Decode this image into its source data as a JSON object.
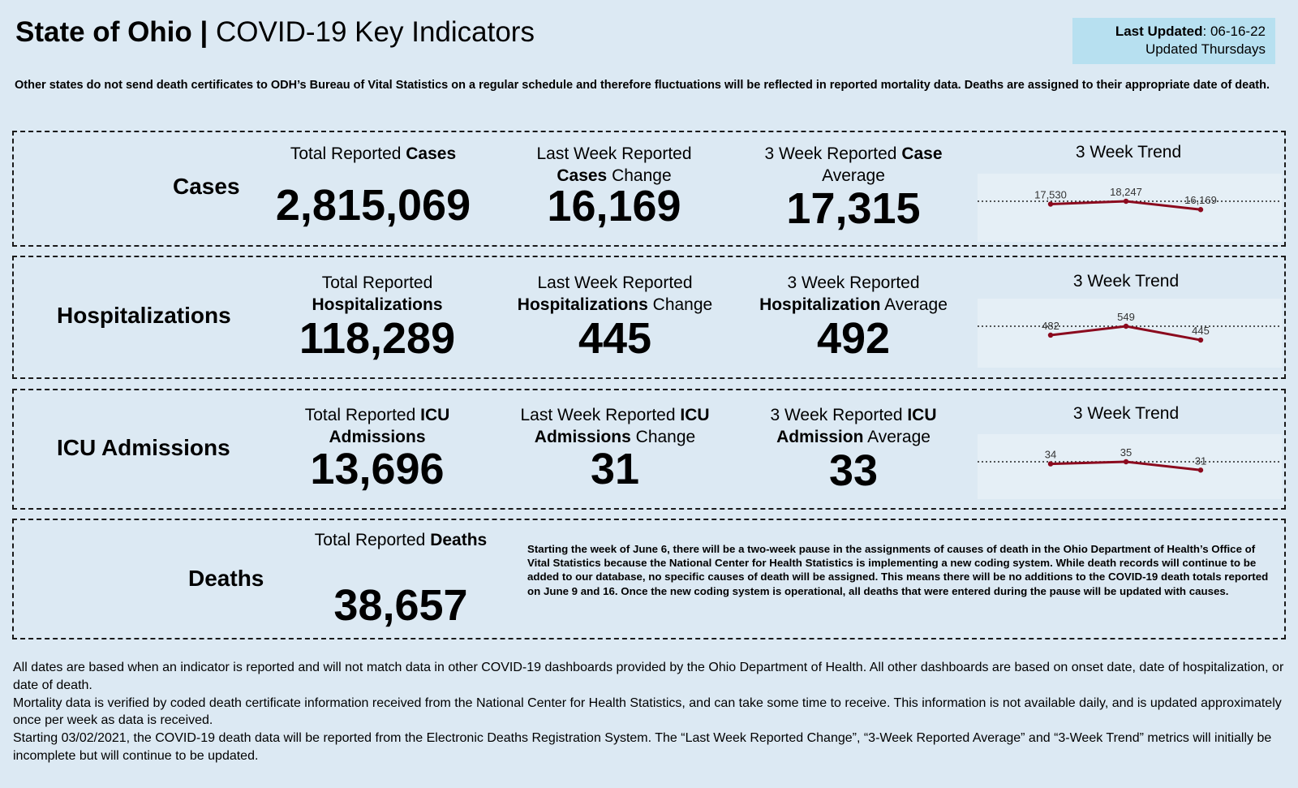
{
  "header": {
    "title_bold": "State of Ohio",
    "title_sep": " | ",
    "title_rest": "COVID-19 Key Indicators",
    "last_updated_label": "Last Updated",
    "last_updated_value": ": 06-16-22",
    "update_schedule": "Updated Thursdays"
  },
  "notice": "Other states do not send death certificates to ODH’s Bureau of Vital Statistics on a regular schedule and therefore fluctuations will be reflected in reported mortality data. Deaths are assigned to their appropriate date of death.",
  "trend_title": "3 Week Trend",
  "cases": {
    "label": "Cases",
    "total_pre": "Total Reported ",
    "total_bold": "Cases",
    "total_value": "2,815,069",
    "change_pre": "Last Week Reported",
    "change_bold": "Cases",
    "change_post": " Change",
    "change_value": "16,169",
    "avg_pre": "3 Week Reported ",
    "avg_bold": "Case",
    "avg_post": "Average",
    "avg_value": "17,315",
    "trend": {
      "values": [
        17530,
        18247,
        16169
      ],
      "labels": [
        "17,530",
        "18,247",
        "16,169"
      ]
    }
  },
  "hospitalizations": {
    "label": "Hospitalizations",
    "total_pre": "Total Reported",
    "total_bold": "Hospitalizations",
    "total_value": "118,289",
    "change_pre": "Last Week Reported",
    "change_bold": "Hospitalizations",
    "change_post": " Change",
    "change_value": "445",
    "avg_pre": "3 Week Reported",
    "avg_bold": "Hospitalization",
    "avg_post": " Average",
    "avg_value": "492",
    "trend": {
      "values": [
        482,
        549,
        445
      ],
      "labels": [
        "482",
        "549",
        "445"
      ]
    }
  },
  "icu": {
    "label": "ICU Admissions",
    "total_pre": "Total Reported ",
    "total_bold": "ICU",
    "total_bold2": "Admissions",
    "total_value": "13,696",
    "change_pre": "Last Week Reported ",
    "change_bold": "ICU",
    "change_bold2": "Admissions",
    "change_post": " Change",
    "change_value": "31",
    "avg_pre": "3 Week Reported ",
    "avg_bold": "ICU",
    "avg_bold2": "Admission",
    "avg_post": " Average",
    "avg_value": "33",
    "trend": {
      "values": [
        34,
        35,
        31
      ],
      "labels": [
        "34",
        "35",
        "31"
      ]
    }
  },
  "deaths": {
    "label": "Deaths",
    "total_pre": "Total Reported ",
    "total_bold": "Deaths",
    "total_value": "38,657",
    "note": "Starting the week of June 6, there will be a two-week pause in the assignments of causes of death in the Ohio Department of Health’s Office of Vital Statistics because the National Center for Health Statistics is implementing a new coding system. While death records will continue to be added to our database, no specific causes of death will be assigned. This means there will be no additions to the COVID-19 death totals reported on June 9 and 16. Once the new coding system is operational, all deaths that were entered during the pause will be updated with causes."
  },
  "footer": {
    "p1": "All dates are based when an indicator is reported and will not match data in other COVID-19 dashboards provided by the Ohio Department of Health. All other dashboards are based on onset date, date of hospitalization, or date of death.",
    "p2": "Mortality data is verified by coded death certificate information received from the National Center for Health Statistics, and can take some time to receive. This information is not available daily, and is updated approximately once per week as data is received.",
    "p3": "Starting 03/02/2021, the COVID-19 death data will be reported from the Electronic Deaths Registration System. The “Last Week Reported Change”, “3-Week Reported Average” and “3-Week Trend” metrics will initially be incomplete but will continue to be updated."
  },
  "colors": {
    "background": "#dce9f3",
    "updated_box": "#b7e0f0",
    "trend_line": "#8b0a1e"
  }
}
